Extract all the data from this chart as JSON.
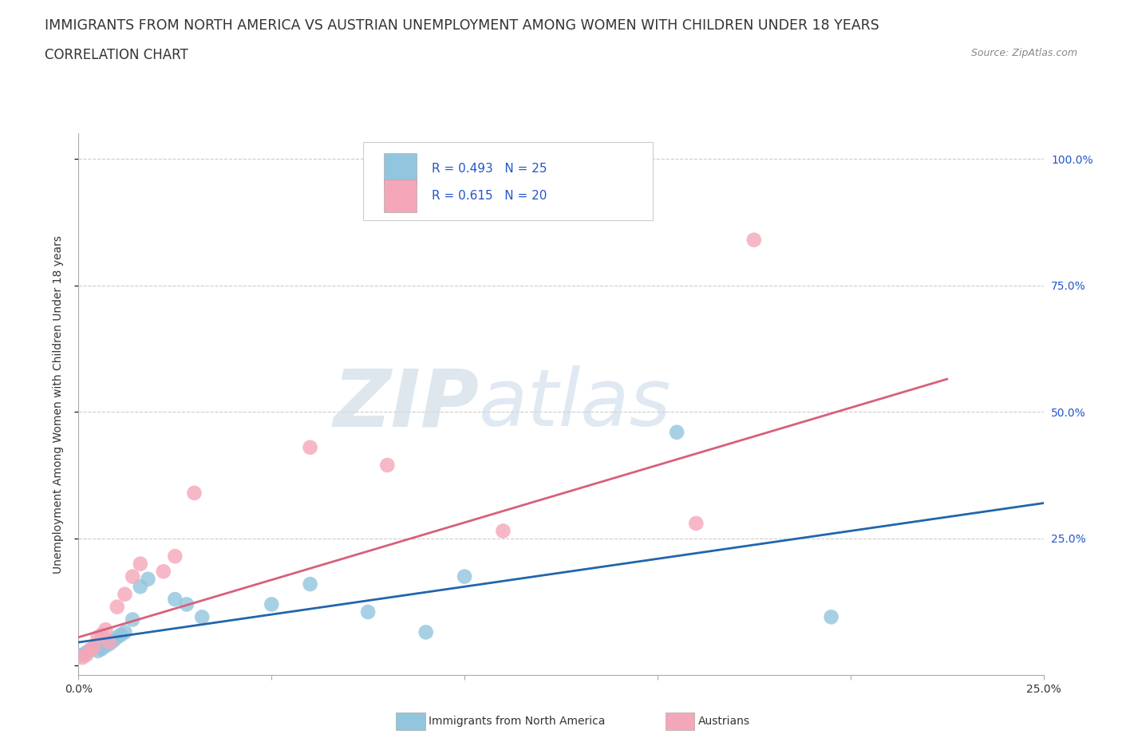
{
  "title": "IMMIGRANTS FROM NORTH AMERICA VS AUSTRIAN UNEMPLOYMENT AMONG WOMEN WITH CHILDREN UNDER 18 YEARS",
  "subtitle": "CORRELATION CHART",
  "source": "Source: ZipAtlas.com",
  "ylabel": "Unemployment Among Women with Children Under 18 years",
  "xlim": [
    0.0,
    0.25
  ],
  "ylim": [
    -0.02,
    1.05
  ],
  "xticks": [
    0.0,
    0.05,
    0.1,
    0.15,
    0.2,
    0.25
  ],
  "xticklabels": [
    "0.0%",
    "",
    "",
    "",
    "",
    "25.0%"
  ],
  "yticks_right": [
    0.0,
    0.25,
    0.5,
    0.75,
    1.0
  ],
  "yticklabels_right": [
    "",
    "25.0%",
    "50.0%",
    "75.0%",
    "100.0%"
  ],
  "blue_R": 0.493,
  "blue_N": 25,
  "pink_R": 0.615,
  "pink_N": 20,
  "blue_color": "#92C5DE",
  "pink_color": "#F4A7B9",
  "blue_line_color": "#2166AC",
  "pink_line_color": "#D6617B",
  "blue_scatter_x": [
    0.001,
    0.002,
    0.003,
    0.004,
    0.005,
    0.006,
    0.007,
    0.008,
    0.009,
    0.01,
    0.011,
    0.012,
    0.014,
    0.016,
    0.018,
    0.025,
    0.028,
    0.032,
    0.05,
    0.06,
    0.075,
    0.09,
    0.1,
    0.155,
    0.195
  ],
  "blue_scatter_y": [
    0.02,
    0.025,
    0.03,
    0.035,
    0.028,
    0.032,
    0.038,
    0.042,
    0.048,
    0.055,
    0.06,
    0.065,
    0.09,
    0.155,
    0.17,
    0.13,
    0.12,
    0.095,
    0.12,
    0.16,
    0.105,
    0.065,
    0.175,
    0.46,
    0.095
  ],
  "pink_scatter_x": [
    0.001,
    0.002,
    0.003,
    0.004,
    0.005,
    0.006,
    0.007,
    0.008,
    0.01,
    0.012,
    0.014,
    0.016,
    0.022,
    0.025,
    0.03,
    0.06,
    0.08,
    0.11,
    0.16,
    0.175
  ],
  "pink_scatter_y": [
    0.015,
    0.02,
    0.03,
    0.035,
    0.055,
    0.06,
    0.07,
    0.045,
    0.115,
    0.14,
    0.175,
    0.2,
    0.185,
    0.215,
    0.34,
    0.43,
    0.395,
    0.265,
    0.28,
    0.84
  ],
  "blue_line_x": [
    0.0,
    0.25
  ],
  "blue_line_y": [
    0.045,
    0.32
  ],
  "pink_line_x": [
    0.0,
    0.225
  ],
  "pink_line_y": [
    0.055,
    0.565
  ],
  "watermark_zip": "ZIP",
  "watermark_atlas": "atlas",
  "background_color": "#FFFFFF",
  "grid_color": "#CCCCCC",
  "title_fontsize": 12.5,
  "subtitle_fontsize": 12,
  "axis_label_fontsize": 10,
  "tick_fontsize": 10,
  "legend_fontsize": 11,
  "r_color": "#2255CC",
  "label_color": "#333333",
  "source_color": "#888888",
  "marker_size": 180
}
